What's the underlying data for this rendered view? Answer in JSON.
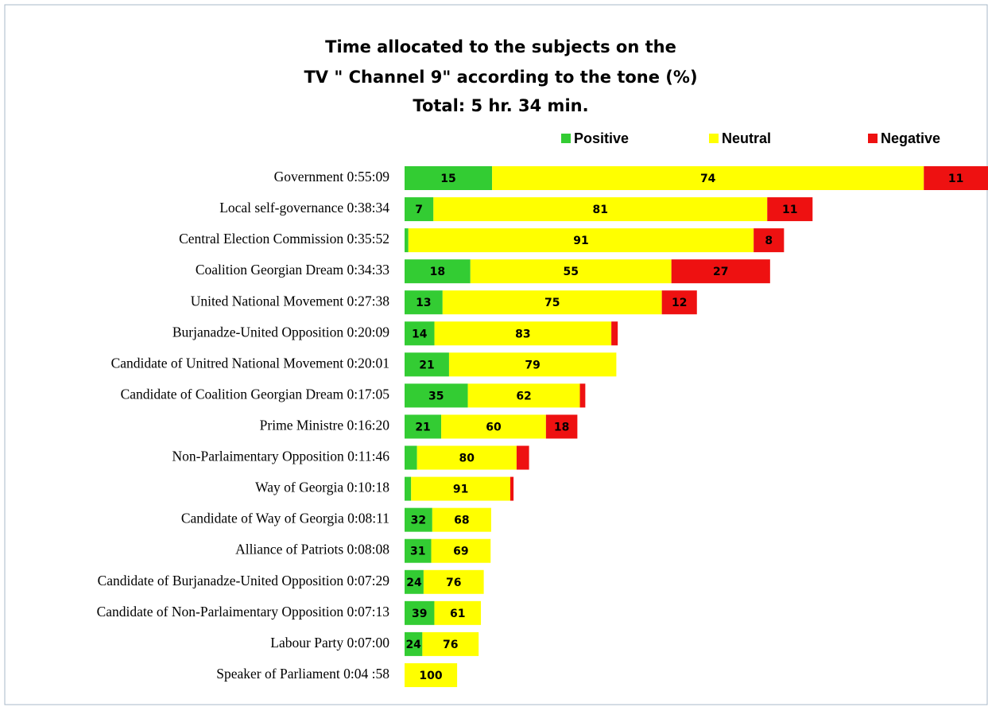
{
  "chart_data": {
    "type": "stacked-barh",
    "title": [
      "Time allocated to the subjects on the",
      "TV \" Channel 9\" according to the tone (%)",
      "Total:  5 hr.  34 min."
    ],
    "categories": [
      "Government 0:55:09",
      "Local self-governance 0:38:34",
      "Central Election Commission 0:35:52",
      "Coalition Georgian Dream 0:34:33",
      "United National Movement 0:27:38",
      "Burjanadze-United Opposition 0:20:09",
      "Candidate of Unitred National Movement 0:20:01",
      "Candidate of Coalition Georgian Dream 0:17:05",
      "Prime Ministre 0:16:20",
      "Non-Parlaimentary Opposition 0:11:46",
      "Way of Georgia 0:10:18",
      "Candidate of Way of Georgia 0:08:11",
      "Alliance of Patriots 0:08:08",
      "Candidate of Burjanadze-United Opposition 0:07:29",
      "Candidate of Non-Parlaimentary Opposition 0:07:13",
      "Labour Party 0:07:00",
      "Speaker of Parliament 0:04 :58"
    ],
    "series": [
      {
        "name": "Positive",
        "color": "#33cc33",
        "values": [
          15,
          7,
          1,
          18,
          13,
          14,
          21,
          35,
          21,
          10,
          6,
          32,
          31,
          24,
          39,
          24,
          0
        ],
        "value_labels": [
          "15",
          "7",
          null,
          "18",
          "13",
          "14",
          "21",
          "35",
          "21",
          null,
          null,
          "32",
          "31",
          "24",
          "39",
          "24",
          null
        ]
      },
      {
        "name": "Neutral",
        "color": "#ffff00",
        "values": [
          74,
          81,
          91,
          55,
          75,
          83,
          79,
          62,
          60,
          80,
          91,
          68,
          69,
          76,
          61,
          76,
          100
        ],
        "value_labels": [
          "74",
          "81",
          "91",
          "55",
          "75",
          "83",
          "79",
          "62",
          "60",
          "80",
          "91",
          "68",
          "69",
          "76",
          "61",
          "76",
          "100"
        ]
      },
      {
        "name": "Negative",
        "color": "#ee1111",
        "values": [
          11,
          11,
          8,
          27,
          12,
          3,
          0,
          3,
          18,
          10,
          3,
          0,
          0,
          0,
          0,
          0,
          0
        ],
        "value_labels": [
          "11",
          "11",
          "8",
          "27",
          "12",
          null,
          null,
          null,
          "18",
          null,
          null,
          null,
          null,
          null,
          null,
          null,
          null
        ]
      }
    ],
    "legend": "top-right"
  }
}
